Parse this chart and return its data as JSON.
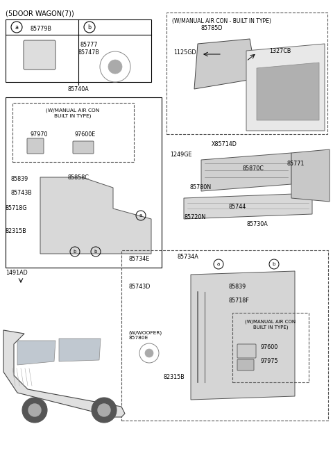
{
  "title": "(5DOOR WAGON(7))",
  "bg_color": "#ffffff",
  "border_color": "#000000",
  "fig_width": 4.8,
  "fig_height": 6.56,
  "dpi": 100,
  "parts_labels": {
    "top_left_table": {
      "a_label": "85779B",
      "b_label": "85777\n85747B",
      "ref": "85740A"
    },
    "top_right_box": {
      "title": "(W/MANUAL AIR CON - BUILT IN TYPE)",
      "parts": [
        "85785D",
        "1125GD",
        "1327CB"
      ]
    },
    "mid_left_inner_box": {
      "title": "(W/MANUAL AIR CON\nBUILT IN TYPE)",
      "parts": [
        "97970",
        "97600E"
      ]
    },
    "mid_left_parts": [
      "85839",
      "85858C",
      "85743B",
      "85718G",
      "82315B"
    ],
    "mid_right_parts": [
      "X85714D",
      "1249GE",
      "85870C",
      "85771",
      "85780N",
      "85744",
      "85720N",
      "85730A"
    ],
    "bottom_right_box": {
      "parts": [
        "85734E",
        "85734A",
        "85743D",
        "82315B",
        "85839",
        "85718F"
      ],
      "sub_box_title": "(W/MANUAL AIR CON\nBUILT IN TYPE)",
      "sub_parts": [
        "97600",
        "97975"
      ],
      "woofer_label": "(W/WOOFER)\n85780E"
    },
    "misc": [
      "1491AD"
    ]
  }
}
